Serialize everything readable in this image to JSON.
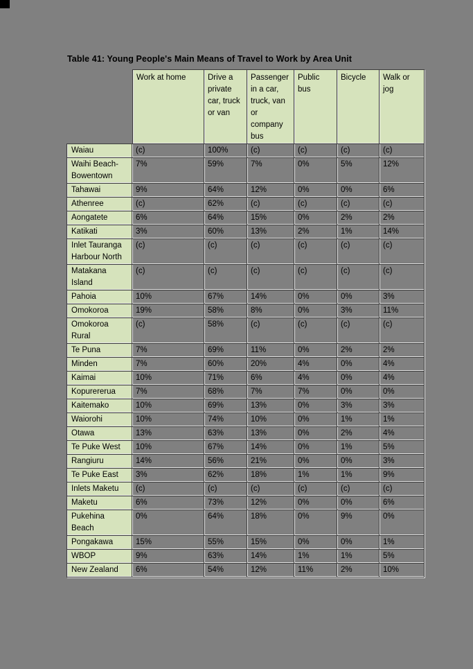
{
  "page": {
    "background_color": "#808080",
    "accent_green": "#d6e3bc",
    "grid_dark": "#3c3c3c",
    "grid_highlight": "#e6e6e6"
  },
  "table": {
    "title": "Table 41: Young People's Main Means of Travel to Work by Area Unit",
    "columns": [
      "Work at home",
      "Drive a private car, truck or van",
      "Passenger in a car, truck, van or company bus",
      "Public bus",
      "Bicycle",
      "Walk or jog"
    ],
    "rows": [
      {
        "area": "Waiau",
        "values": [
          "(c)",
          "100%",
          "(c)",
          "(c)",
          "(c)",
          "(c)"
        ]
      },
      {
        "area": "Waihi Beach-Bowentown",
        "values": [
          "7%",
          "59%",
          "7%",
          "0%",
          "5%",
          "12%"
        ]
      },
      {
        "area": "Tahawai",
        "values": [
          "9%",
          "64%",
          "12%",
          "0%",
          "0%",
          "6%"
        ]
      },
      {
        "area": "Athenree",
        "values": [
          "(c)",
          "62%",
          "(c)",
          "(c)",
          "(c)",
          "(c)"
        ]
      },
      {
        "area": "Aongatete",
        "values": [
          "6%",
          "64%",
          "15%",
          "0%",
          "2%",
          "2%"
        ]
      },
      {
        "area": "Katikati",
        "values": [
          "3%",
          "60%",
          "13%",
          "2%",
          "1%",
          "14%"
        ]
      },
      {
        "area": "Inlet Tauranga Harbour North",
        "values": [
          "(c)",
          "(c)",
          "(c)",
          "(c)",
          "(c)",
          "(c)"
        ]
      },
      {
        "area": "Matakana Island",
        "values": [
          "(c)",
          "(c)",
          "(c)",
          "(c)",
          "(c)",
          "(c)"
        ]
      },
      {
        "area": "Pahoia",
        "values": [
          "10%",
          "67%",
          "14%",
          "0%",
          "0%",
          "3%"
        ]
      },
      {
        "area": "Omokoroa",
        "values": [
          "19%",
          "58%",
          "8%",
          "0%",
          "3%",
          "11%"
        ]
      },
      {
        "area": "Omokoroa Rural",
        "values": [
          "(c)",
          "58%",
          "(c)",
          "(c)",
          "(c)",
          "(c)"
        ]
      },
      {
        "area": "Te Puna",
        "values": [
          "7%",
          "69%",
          "11%",
          "0%",
          "2%",
          "2%"
        ]
      },
      {
        "area": "Minden",
        "values": [
          "7%",
          "60%",
          "20%",
          "4%",
          "0%",
          "4%"
        ]
      },
      {
        "area": "Kaimai",
        "values": [
          "10%",
          "71%",
          "6%",
          "4%",
          "0%",
          "4%"
        ]
      },
      {
        "area": "Kopurererua",
        "values": [
          "7%",
          "68%",
          "7%",
          "7%",
          "0%",
          "0%"
        ]
      },
      {
        "area": "Kaitemako",
        "values": [
          "10%",
          "69%",
          "13%",
          "0%",
          "3%",
          "3%"
        ]
      },
      {
        "area": "Waiorohi",
        "values": [
          "10%",
          "74%",
          "10%",
          "0%",
          "1%",
          "1%"
        ]
      },
      {
        "area": "Otawa",
        "values": [
          "13%",
          "63%",
          "13%",
          "0%",
          "2%",
          "4%"
        ]
      },
      {
        "area": "Te Puke West",
        "values": [
          "10%",
          "67%",
          "14%",
          "0%",
          "1%",
          "5%"
        ]
      },
      {
        "area": "Rangiuru",
        "values": [
          "14%",
          "56%",
          "21%",
          "0%",
          "0%",
          "3%"
        ]
      },
      {
        "area": "Te Puke East",
        "values": [
          "3%",
          "62%",
          "18%",
          "1%",
          "1%",
          "9%"
        ]
      },
      {
        "area": "Inlets Maketu",
        "values": [
          "(c)",
          "(c)",
          "(c)",
          "(c)",
          "(c)",
          "(c)"
        ]
      },
      {
        "area": "Maketu",
        "values": [
          "6%",
          "73%",
          "12%",
          "0%",
          "0%",
          "6%"
        ]
      },
      {
        "area": "Pukehina Beach",
        "values": [
          "0%",
          "64%",
          "18%",
          "0%",
          "9%",
          "0%"
        ]
      },
      {
        "area": "Pongakawa",
        "values": [
          "15%",
          "55%",
          "15%",
          "0%",
          "0%",
          "1%"
        ]
      },
      {
        "area": "WBOP",
        "values": [
          "9%",
          "63%",
          "14%",
          "1%",
          "1%",
          "5%"
        ]
      },
      {
        "area": "New Zealand",
        "values": [
          "6%",
          "54%",
          "12%",
          "11%",
          "2%",
          "10%"
        ]
      }
    ]
  }
}
